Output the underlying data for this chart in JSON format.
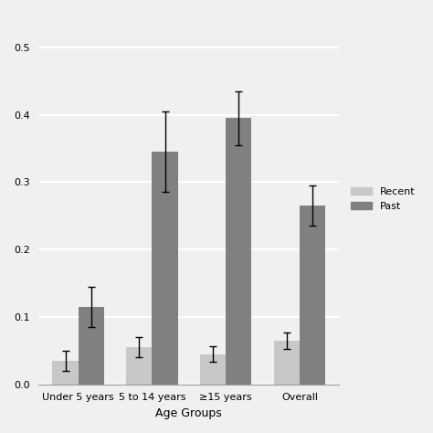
{
  "xlabel": "Age Groups",
  "ylabel": "",
  "categories": [
    "Under 5 years",
    "5 to 14 years",
    "≥15 years",
    "Overall"
  ],
  "recent_values": [
    0.035,
    0.055,
    0.045,
    0.065
  ],
  "past_values": [
    0.115,
    0.345,
    0.395,
    0.265
  ],
  "recent_errors": [
    0.015,
    0.015,
    0.012,
    0.012
  ],
  "past_errors": [
    0.03,
    0.06,
    0.04,
    0.03
  ],
  "recent_color": "#c8c8c8",
  "past_color": "#808080",
  "legend_labels": [
    "Recent",
    "Past"
  ],
  "ylim": [
    0,
    0.55
  ],
  "bar_width": 0.35,
  "background_color": "#f0f0f0",
  "grid_color": "#ffffff",
  "title_fontsize": 9,
  "axis_fontsize": 9,
  "tick_fontsize": 8
}
